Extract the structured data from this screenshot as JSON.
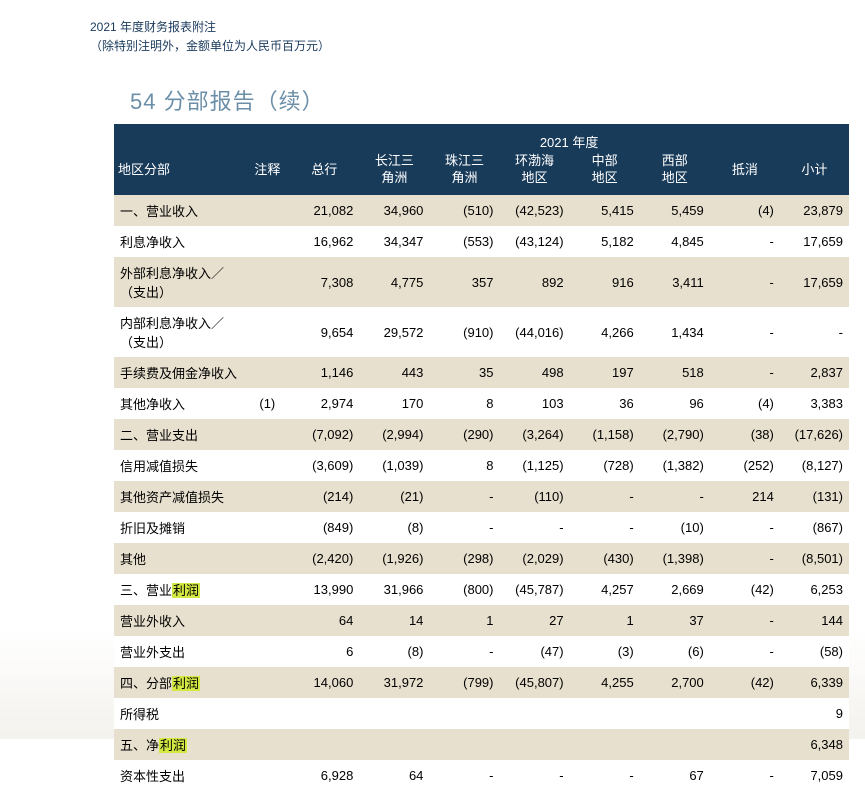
{
  "header": {
    "line1": "2021 年度财务报表附注",
    "line2": "（除特别注明外，金额单位为人民币百万元）"
  },
  "section": {
    "num": "54",
    "title": "分部报告（续）"
  },
  "table": {
    "year_label": "2021 年度",
    "columns": [
      "地区分部",
      "注释",
      "总行",
      "长江三\n角洲",
      "珠江三\n角洲",
      "环渤海\n地区",
      "中部\n地区",
      "西部\n地区",
      "抵消",
      "小计"
    ],
    "rows": [
      {
        "label": "一、营业收入",
        "note": "",
        "vals": [
          "21,082",
          "34,960",
          "(510)",
          "(42,523)",
          "5,415",
          "5,459",
          "(4)",
          "23,879"
        ]
      },
      {
        "label": "利息净收入",
        "note": "",
        "vals": [
          "16,962",
          "34,347",
          "(553)",
          "(43,124)",
          "5,182",
          "4,845",
          "-",
          "17,659"
        ]
      },
      {
        "label": "外部利息净收入／（支出）",
        "note": "",
        "vals": [
          "7,308",
          "4,775",
          "357",
          "892",
          "916",
          "3,411",
          "-",
          "17,659"
        ]
      },
      {
        "label": "内部利息净收入／（支出）",
        "note": "",
        "vals": [
          "9,654",
          "29,572",
          "(910)",
          "(44,016)",
          "4,266",
          "1,434",
          "-",
          "-"
        ]
      },
      {
        "label": "手续费及佣金净收入",
        "note": "",
        "vals": [
          "1,146",
          "443",
          "35",
          "498",
          "197",
          "518",
          "-",
          "2,837"
        ]
      },
      {
        "label": "其他净收入",
        "note": "(1)",
        "vals": [
          "2,974",
          "170",
          "8",
          "103",
          "36",
          "96",
          "(4)",
          "3,383"
        ]
      },
      {
        "label": "二、营业支出",
        "note": "",
        "vals": [
          "(7,092)",
          "(2,994)",
          "(290)",
          "(3,264)",
          "(1,158)",
          "(2,790)",
          "(38)",
          "(17,626)"
        ]
      },
      {
        "label": "信用减值损失",
        "note": "",
        "vals": [
          "(3,609)",
          "(1,039)",
          "8",
          "(1,125)",
          "(728)",
          "(1,382)",
          "(252)",
          "(8,127)"
        ]
      },
      {
        "label": "其他资产减值损失",
        "note": "",
        "vals": [
          "(214)",
          "(21)",
          "-",
          "(110)",
          "-",
          "-",
          "214",
          "(131)"
        ]
      },
      {
        "label": "折旧及摊销",
        "note": "",
        "vals": [
          "(849)",
          "(8)",
          "-",
          "-",
          "-",
          "(10)",
          "-",
          "(867)"
        ]
      },
      {
        "label": "其他",
        "note": "",
        "vals": [
          "(2,420)",
          "(1,926)",
          "(298)",
          "(2,029)",
          "(430)",
          "(1,398)",
          "-",
          "(8,501)"
        ]
      },
      {
        "label": "三、营业",
        "hl": "利润",
        "note": "",
        "vals": [
          "13,990",
          "31,966",
          "(800)",
          "(45,787)",
          "4,257",
          "2,669",
          "(42)",
          "6,253"
        ]
      },
      {
        "label": "营业外收入",
        "note": "",
        "vals": [
          "64",
          "14",
          "1",
          "27",
          "1",
          "37",
          "-",
          "144"
        ]
      },
      {
        "label": "营业外支出",
        "note": "",
        "vals": [
          "6",
          "(8)",
          "-",
          "(47)",
          "(3)",
          "(6)",
          "-",
          "(58)"
        ]
      },
      {
        "label": "四、分部",
        "hl": "利润",
        "note": "",
        "vals": [
          "14,060",
          "31,972",
          "(799)",
          "(45,807)",
          "4,255",
          "2,700",
          "(42)",
          "6,339"
        ]
      },
      {
        "label": "所得税",
        "note": "",
        "vals": [
          "",
          "",
          "",
          "",
          "",
          "",
          "",
          "9"
        ]
      },
      {
        "label": "五、净",
        "hl": "利润",
        "note": "",
        "vals": [
          "",
          "",
          "",
          "",
          "",
          "",
          "",
          "6,348"
        ]
      },
      {
        "label": "资本性支出",
        "note": "",
        "vals": [
          "6,928",
          "64",
          "-",
          "-",
          "-",
          "67",
          "-",
          "7,059"
        ]
      }
    ]
  },
  "colors": {
    "header_bg": "#193b5a",
    "header_fg": "#ffffff",
    "row_odd": "#e8e0ce",
    "row_even": "#ffffff",
    "title_color": "#6b8fa8",
    "note_color": "#1a3a5c",
    "highlight": "#d4e843"
  }
}
